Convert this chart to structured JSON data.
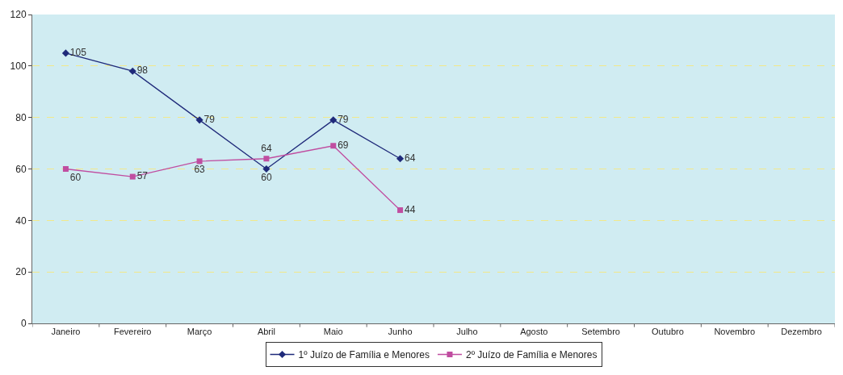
{
  "chart_data": {
    "type": "line",
    "categories": [
      "Janeiro",
      "Fevereiro",
      "Março",
      "Abril",
      "Maio",
      "Junho",
      "Julho",
      "Agosto",
      "Setembro",
      "Outubro",
      "Novembro",
      "Dezembro"
    ],
    "series": [
      {
        "name": "1º Juízo de Família e Menores",
        "color": "#1f2a7a",
        "marker": "diamond",
        "values": [
          105,
          98,
          79,
          60,
          79,
          64,
          null,
          null,
          null,
          null,
          null,
          null
        ]
      },
      {
        "name": "2º Juízo de Família e Menores",
        "color": "#c04da0",
        "marker": "square",
        "values": [
          60,
          57,
          63,
          64,
          69,
          44,
          null,
          null,
          null,
          null,
          null,
          null
        ]
      }
    ],
    "ylim": [
      0,
      120
    ],
    "yticks": [
      0,
      20,
      40,
      60,
      80,
      100,
      120
    ],
    "grid": "y",
    "legend": "bottom",
    "data_labels": true
  }
}
